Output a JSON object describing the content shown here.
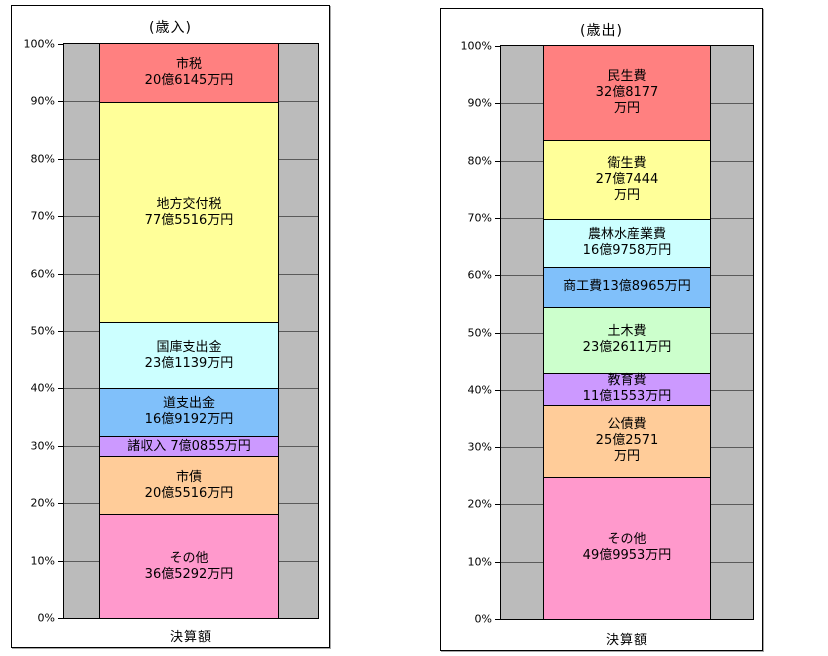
{
  "style": {
    "background": "#FFFFFF",
    "wall_color": "#BBBBBB",
    "grid_color": "#5A5A5A",
    "axis_color": "#000000",
    "segment_border_color": "#000000"
  },
  "chart_data": [
    {
      "type": "bar",
      "subtype": "stacked-100-percent",
      "title": "(歳入)",
      "xlabel": "決算額",
      "ylabel": "",
      "ylim": [
        0,
        100
      ],
      "grid": true,
      "y_ticks": [
        "100%",
        "90%",
        "80%",
        "70%",
        "60%",
        "50%",
        "40%",
        "30%",
        "20%",
        "10%",
        "0%"
      ],
      "categories": [
        "決算額"
      ],
      "segments": [
        {
          "id": "shizei",
          "label": "市税",
          "value_text": "20億6145万円",
          "value_man_yen": 206145,
          "pct": 10.19,
          "color": "#FF8080",
          "lines": [
            "市税",
            "20億6145万円"
          ]
        },
        {
          "id": "chihou-koufuzei",
          "label": "地方交付税",
          "value_text": "77億5516万円",
          "value_man_yen": 775516,
          "pct": 38.32,
          "color": "#FFFF99",
          "lines": [
            "地方交付税",
            "77億5516万円"
          ]
        },
        {
          "id": "kokko-shishutsukin",
          "label": "国庫支出金",
          "value_text": "23億1139万円",
          "value_man_yen": 231139,
          "pct": 11.42,
          "color": "#CCFFFF",
          "lines": [
            "国庫支出金",
            "23億1139万円"
          ]
        },
        {
          "id": "dou-shishutsukin",
          "label": "道支出金",
          "value_text": "16億9192万円",
          "value_man_yen": 169192,
          "pct": 8.36,
          "color": "#80C0FA",
          "lines": [
            "道支出金",
            "16億9192万円"
          ]
        },
        {
          "id": "shoshuunyuu",
          "label": "諸収入",
          "value_text": "7億0855万円",
          "value_man_yen": 70855,
          "pct": 3.5,
          "color": "#CC99FF",
          "lines": [
            "諸収入 7億0855万円"
          ]
        },
        {
          "id": "shisai",
          "label": "市債",
          "value_text": "20億5516万円",
          "value_man_yen": 205516,
          "pct": 10.16,
          "color": "#FFCC99",
          "lines": [
            "市債",
            "20億5516万円"
          ]
        },
        {
          "id": "sonota",
          "label": "その他",
          "value_text": "36億5292万円",
          "value_man_yen": 365292,
          "pct": 18.05,
          "color": "#FF99CC",
          "lines": [
            "その他",
            "36億5292万円"
          ]
        }
      ]
    },
    {
      "type": "bar",
      "subtype": "stacked-100-percent",
      "title": "(歳出)",
      "xlabel": "決算額",
      "ylabel": "",
      "ylim": [
        0,
        100
      ],
      "grid": true,
      "y_ticks": [
        "100%",
        "90%",
        "80%",
        "70%",
        "60%",
        "50%",
        "40%",
        "30%",
        "20%",
        "10%",
        "0%"
      ],
      "categories": [
        "決算額"
      ],
      "segments": [
        {
          "id": "minseihi",
          "label": "民生費",
          "value_text": "32億8177万円",
          "value_man_yen": 328177,
          "pct": 16.32,
          "color": "#FF8080",
          "lines": [
            "民生費",
            "32億8177",
            "万円"
          ]
        },
        {
          "id": "eiseihi",
          "label": "衛生費",
          "value_text": "27億7444万円",
          "value_man_yen": 277444,
          "pct": 13.8,
          "color": "#FFFF99",
          "lines": [
            "衛生費",
            "27億7444",
            "万円"
          ]
        },
        {
          "id": "nourin-suisangyouhi",
          "label": "農林水産業費",
          "value_text": "16億9758万円",
          "value_man_yen": 169758,
          "pct": 8.44,
          "color": "#CCFFFF",
          "lines": [
            "農林水産業費",
            "16億9758万円"
          ]
        },
        {
          "id": "shoukouhi",
          "label": "商工費",
          "value_text": "13億8965万円",
          "value_man_yen": 138965,
          "pct": 6.91,
          "color": "#80C0FA",
          "lines": [
            "商工費13億8965万円"
          ]
        },
        {
          "id": "dobokuhi",
          "label": "土木費",
          "value_text": "23億2611万円",
          "value_man_yen": 232611,
          "pct": 11.57,
          "color": "#CCFFCC",
          "lines": [
            "土木費",
            "23億2611万円"
          ]
        },
        {
          "id": "kyouikuhi",
          "label": "教育費",
          "value_text": "11億1553万円",
          "value_man_yen": 111553,
          "pct": 5.55,
          "color": "#CC99FF",
          "lines": [
            "教育費",
            "11億1553万円"
          ]
        },
        {
          "id": "kousaihi",
          "label": "公債費",
          "value_text": "25億2571万円",
          "value_man_yen": 252571,
          "pct": 12.56,
          "color": "#FFCC99",
          "lines": [
            "公債費",
            "25億2571",
            "万円"
          ]
        },
        {
          "id": "sonota",
          "label": "その他",
          "value_text": "49億9953万円",
          "value_man_yen": 499953,
          "pct": 24.86,
          "color": "#FF99CC",
          "lines": [
            "その他",
            "49億9953万円"
          ]
        }
      ]
    }
  ]
}
